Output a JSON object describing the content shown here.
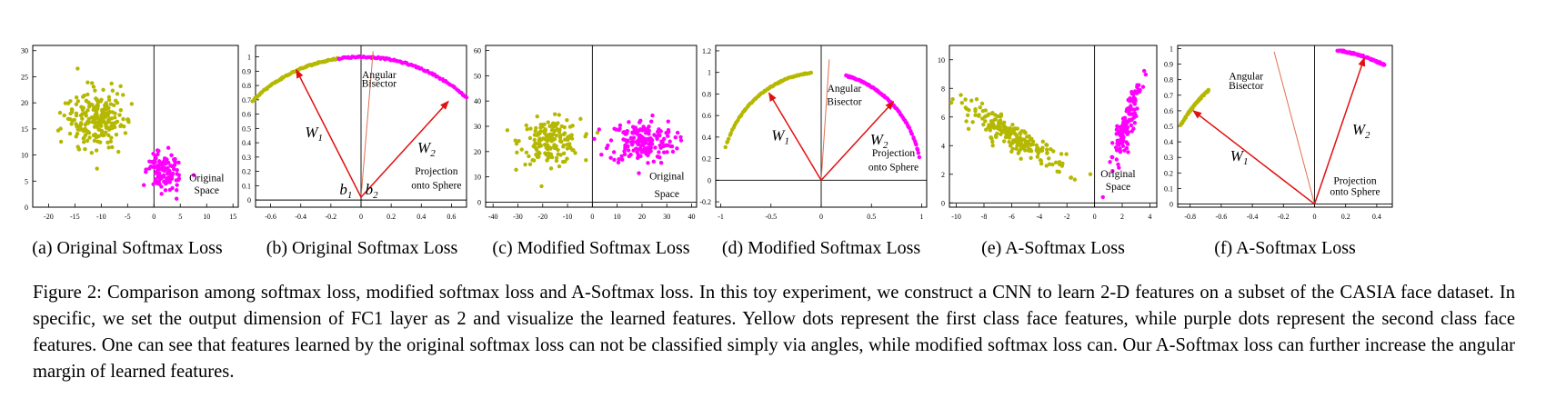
{
  "figure_caption": "Figure 2: Comparison among softmax loss, modified softmax loss and A-Softmax loss. In this toy experiment, we construct a CNN to learn 2-D features on a subset of the CASIA face dataset. In specific, we set the output dimension of FC1 layer as 2 and visualize the learned features. Yellow dots represent the first class face features, while purple dots represent the second class face features. One can see that features learned by the original softmax loss can not be classified simply via angles, while modified softmax loss can. Our A-Softmax loss can further increase the angular margin of learned features.",
  "colors": {
    "class1": "#b5b800",
    "class2": "#ff00ff",
    "arrow": "#e01010",
    "bisector": "#e07050"
  },
  "chart_data": [
    {
      "type": "scatter",
      "caption": "(a) Original Softmax Loss",
      "xticks": [
        "-20",
        "-15",
        "-10",
        "-5",
        "0",
        "5",
        "10",
        "15"
      ],
      "yticks": [
        "0",
        "5",
        "10",
        "15",
        "20",
        "25",
        "30"
      ],
      "xlim": [
        -23,
        16
      ],
      "ylim": [
        0,
        31
      ],
      "annotations": [
        {
          "text": "Original",
          "x": 10,
          "y": 5
        },
        {
          "text": "Space",
          "x": 10,
          "y": 2.6
        }
      ],
      "series": [
        {
          "color": "class1",
          "cluster": {
            "cx": -11,
            "cy": 17,
            "rx": 5,
            "ry": 5.5,
            "angle": -50,
            "n": 230
          }
        },
        {
          "color": "class2",
          "cluster": {
            "cx": 2,
            "cy": 7,
            "rx": 3,
            "ry": 3,
            "angle": 40,
            "n": 110
          }
        }
      ]
    },
    {
      "type": "scatter",
      "caption": "(b) Original Softmax Loss",
      "xticks": [
        "-0.6",
        "-0.4",
        "-0.2",
        "0",
        "0.2",
        "0.4",
        "0.6"
      ],
      "yticks": [
        "0",
        "0.1",
        "0.2",
        "0.3",
        "0.4",
        "0.5",
        "0.6",
        "0.7",
        "0.8",
        "0.9",
        "1"
      ],
      "xlim": [
        -0.7,
        0.7
      ],
      "ylim": [
        -0.05,
        1.08
      ],
      "series": [
        {
          "color": "class1",
          "arc": {
            "from": -0.72,
            "to": -0.15,
            "r": 1.0,
            "n": 80
          }
        },
        {
          "color": "class2",
          "arc": {
            "from": -0.15,
            "to": 0.7,
            "r": 1.0,
            "n": 90
          }
        }
      ],
      "arrows": [
        {
          "label": "W1",
          "from": [
            0,
            0.02
          ],
          "to": [
            -0.43,
            0.91
          ]
        },
        {
          "label": "W2",
          "from": [
            0,
            0.02
          ],
          "to": [
            0.58,
            0.69
          ]
        }
      ],
      "bisector": {
        "from": [
          0,
          0.02
        ],
        "to": [
          0.08,
          1.04
        ]
      },
      "bias_labels": [
        {
          "text": "b1",
          "x": -0.1,
          "y": 0.04
        },
        {
          "text": "b2",
          "x": 0.07,
          "y": 0.04
        }
      ],
      "annotations": [
        {
          "text": "Angular",
          "x": 0.12,
          "y": 0.85
        },
        {
          "text": "Bisector",
          "x": 0.12,
          "y": 0.79
        },
        {
          "text": "Projection",
          "x": 0.5,
          "y": 0.18
        },
        {
          "text": "onto Sphere",
          "x": 0.5,
          "y": 0.08
        }
      ]
    },
    {
      "type": "scatter",
      "caption": "(c) Modified Softmax Loss",
      "xticks": [
        "-40",
        "-30",
        "-20",
        "-10",
        "0",
        "10",
        "20",
        "30",
        "40"
      ],
      "yticks": [
        "0",
        "10",
        "20",
        "30",
        "40",
        "50",
        "60"
      ],
      "xlim": [
        -43,
        42
      ],
      "ylim": [
        -2,
        62
      ],
      "annotations": [
        {
          "text": "Original",
          "x": 30,
          "y": 9
        },
        {
          "text": "Space",
          "x": 30,
          "y": 2
        }
      ],
      "series": [
        {
          "color": "class1",
          "cluster": {
            "cx": -17,
            "cy": 24,
            "rx": 11,
            "ry": 8,
            "angle": 0,
            "n": 170
          }
        },
        {
          "color": "class2",
          "cluster": {
            "cx": 20,
            "cy": 24,
            "rx": 12,
            "ry": 8,
            "angle": 0,
            "n": 180
          }
        }
      ]
    },
    {
      "type": "scatter",
      "caption": "(d) Modified Softmax Loss",
      "xticks": [
        "-1",
        "-0.5",
        "0",
        "0.5",
        "1"
      ],
      "yticks": [
        "-0.2",
        "0",
        "0.2",
        "0.4",
        "0.6",
        "0.8",
        "1",
        "1.2"
      ],
      "xlim": [
        -1.05,
        1.05
      ],
      "ylim": [
        -0.25,
        1.25
      ],
      "series": [
        {
          "color": "class1",
          "arc": {
            "from": -0.95,
            "to": -0.1,
            "r": 1.0,
            "n": 80
          }
        },
        {
          "color": "class2",
          "arc": {
            "from": 0.25,
            "to": 0.98,
            "r": 1.0,
            "n": 90
          }
        }
      ],
      "arrows": [
        {
          "label": "W1",
          "from": [
            0,
            0
          ],
          "to": [
            -0.52,
            0.81
          ]
        },
        {
          "label": "W2",
          "from": [
            0,
            0
          ],
          "to": [
            0.72,
            0.73
          ]
        }
      ],
      "bisector": {
        "from": [
          0,
          0
        ],
        "to": [
          0.08,
          1.12
        ]
      },
      "annotations": [
        {
          "text": "Angular",
          "x": 0.23,
          "y": 0.82
        },
        {
          "text": "Bisector",
          "x": 0.23,
          "y": 0.7
        },
        {
          "text": "Projection",
          "x": 0.72,
          "y": 0.22
        },
        {
          "text": "onto Sphere",
          "x": 0.72,
          "y": 0.09
        }
      ]
    },
    {
      "type": "scatter",
      "caption": "(e) A-Softmax Loss",
      "xticks": [
        "-10",
        "-8",
        "-6",
        "-4",
        "-2",
        "0",
        "2",
        "4"
      ],
      "yticks": [
        "0",
        "2",
        "4",
        "6",
        "8",
        "10"
      ],
      "xlim": [
        -10.5,
        4.5
      ],
      "ylim": [
        -0.3,
        11
      ],
      "annotations": [
        {
          "text": "Original",
          "x": 1.7,
          "y": 1.8
        },
        {
          "text": "Space",
          "x": 1.7,
          "y": 0.9
        }
      ],
      "series": [
        {
          "color": "class1",
          "cluster": {
            "cx": -5.8,
            "cy": 4.6,
            "rx": 4.2,
            "ry": 0.75,
            "angle": -30,
            "n": 210
          }
        },
        {
          "color": "class2",
          "cluster": {
            "cx": 2.3,
            "cy": 5.5,
            "rx": 2.6,
            "ry": 0.45,
            "angle": 72,
            "n": 130
          }
        }
      ]
    },
    {
      "type": "scatter",
      "caption": "(f) A-Softmax Loss",
      "xticks": [
        "-0.8",
        "-0.6",
        "-0.4",
        "-0.2",
        "0",
        "0.2",
        "0.4"
      ],
      "yticks": [
        "0",
        "0.1",
        "0.2",
        "0.3",
        "0.4",
        "0.5",
        "0.6",
        "0.7",
        "0.8",
        "0.9",
        "1"
      ],
      "xlim": [
        -0.88,
        0.5
      ],
      "ylim": [
        -0.02,
        1.02
      ],
      "series": [
        {
          "color": "class1",
          "arc": {
            "from": -0.86,
            "to": -0.68,
            "r": 1.0,
            "n": 60
          }
        },
        {
          "color": "class2",
          "arc": {
            "from": 0.15,
            "to": 0.45,
            "r": 1.0,
            "n": 60
          }
        }
      ],
      "arrows": [
        {
          "label": "W1",
          "from": [
            0,
            0
          ],
          "to": [
            -0.78,
            0.6
          ]
        },
        {
          "label": "W2",
          "from": [
            0,
            0
          ],
          "to": [
            0.32,
            0.94
          ]
        }
      ],
      "bisector": {
        "from": [
          0,
          0
        ],
        "to": [
          -0.26,
          0.98
        ]
      },
      "annotations": [
        {
          "text": "Angular",
          "x": -0.44,
          "y": 0.8
        },
        {
          "text": "Bisector",
          "x": -0.44,
          "y": 0.74
        },
        {
          "text": "Projection",
          "x": 0.26,
          "y": 0.13
        },
        {
          "text": "onto Sphere",
          "x": 0.26,
          "y": 0.06
        }
      ]
    }
  ]
}
